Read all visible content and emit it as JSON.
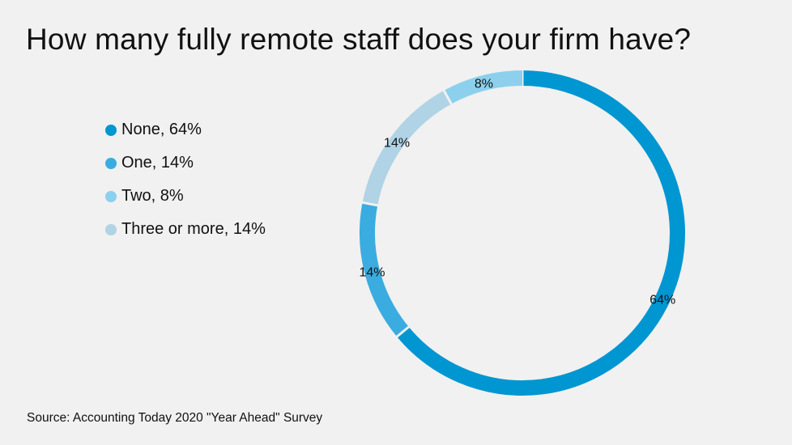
{
  "chart_data": {
    "type": "pie",
    "donut": true,
    "title": "How many fully remote staff does your firm have?",
    "categories": [
      "None",
      "One",
      "Three or more",
      "Two"
    ],
    "values": [
      64,
      14,
      14,
      8
    ],
    "data_labels": [
      "64%",
      "14%",
      "14%",
      "8%"
    ],
    "colors": [
      "#0096d2",
      "#3aacdf",
      "#b0d3e5",
      "#8cd0ee"
    ],
    "legend": {
      "placement": "left",
      "entries": [
        {
          "label": "None, 64%",
          "color": "#0096d2"
        },
        {
          "label": "One, 14%",
          "color": "#3aacdf"
        },
        {
          "label": "Two, 8%",
          "color": "#8cd0ee"
        },
        {
          "label": "Three or more, 14%",
          "color": "#b0d3e5"
        }
      ]
    },
    "source": "Source: Accounting Today 2020 \"Year Ahead\" Survey"
  }
}
